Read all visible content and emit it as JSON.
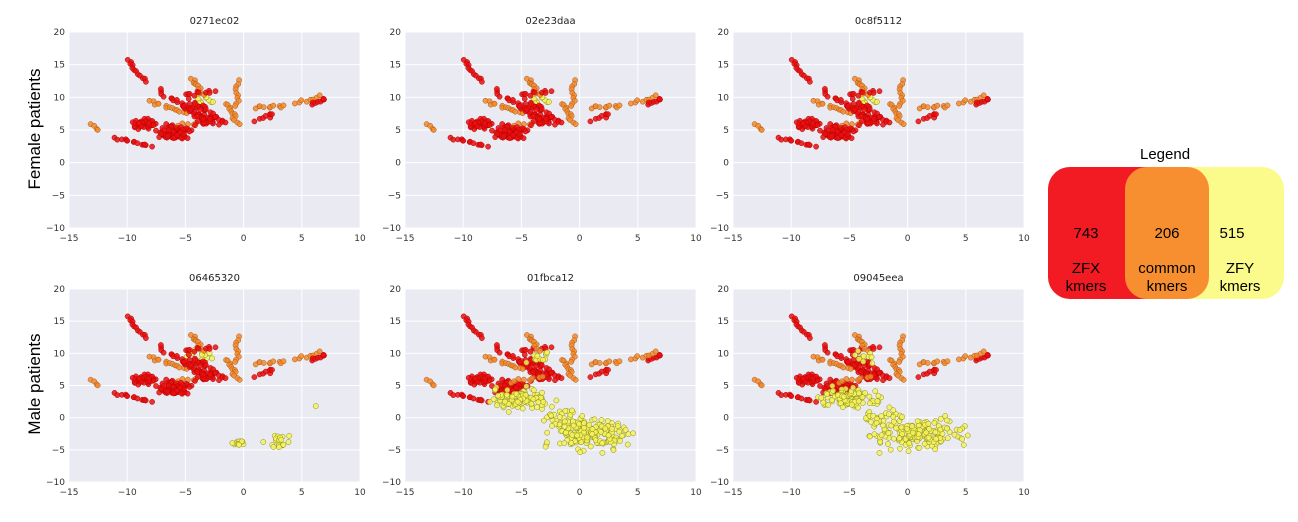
{
  "figure": {
    "row_labels": {
      "female": "Female patients",
      "male": "Male patients"
    }
  },
  "colors": {
    "zfx": "#e81010",
    "common": "#f28a2e",
    "zfy": "#f6f35a",
    "plot_bg": "#eaeaf2",
    "grid": "#ffffff"
  },
  "legend": {
    "title": "Legend",
    "zfx": {
      "count": "743",
      "label_line1": "ZFX",
      "label_line2": "kmers"
    },
    "common": {
      "count": "206",
      "label_line1": "common",
      "label_line2": "kmers"
    },
    "zfy": {
      "count": "515",
      "label_line1": "ZFY",
      "label_line2": "kmers"
    }
  },
  "chart_data": [
    {
      "type": "scatter",
      "title": "0271ec02",
      "group": "female",
      "zfy_spread": 0,
      "xlim": [
        -15,
        10
      ],
      "ylim": [
        -10,
        20
      ],
      "xticks": [
        "−15",
        "−10",
        "−5",
        "0",
        "5",
        "10"
      ],
      "yticks": [
        "−10",
        "−5",
        "0",
        "5",
        "10",
        "15",
        "20"
      ]
    },
    {
      "type": "scatter",
      "title": "02e23daa",
      "group": "female",
      "zfy_spread": 0,
      "xlim": [
        -15,
        10
      ],
      "ylim": [
        -10,
        20
      ],
      "xticks": [
        "−15",
        "−10",
        "−5",
        "0",
        "5",
        "10"
      ],
      "yticks": [
        "−10",
        "−5",
        "0",
        "5",
        "10",
        "15",
        "20"
      ]
    },
    {
      "type": "scatter",
      "title": "0c8f5112",
      "group": "female",
      "zfy_spread": 0,
      "xlim": [
        -15,
        10
      ],
      "ylim": [
        -10,
        20
      ],
      "xticks": [
        "−15",
        "−10",
        "−5",
        "0",
        "5",
        "10"
      ],
      "yticks": [
        "−10",
        "−5",
        "0",
        "5",
        "10",
        "15",
        "20"
      ]
    },
    {
      "type": "scatter",
      "title": "06465320",
      "group": "male",
      "zfy_spread": 1,
      "xlim": [
        -15,
        10
      ],
      "ylim": [
        -10,
        20
      ],
      "xticks": [
        "−15",
        "−10",
        "−5",
        "0",
        "5",
        "10"
      ],
      "yticks": [
        "−10",
        "−5",
        "0",
        "5",
        "10",
        "15",
        "20"
      ]
    },
    {
      "type": "scatter",
      "title": "01fbca12",
      "group": "male",
      "zfy_spread": 2,
      "xlim": [
        -15,
        10
      ],
      "ylim": [
        -10,
        20
      ],
      "xticks": [
        "−15",
        "−10",
        "−5",
        "0",
        "5",
        "10"
      ],
      "yticks": [
        "−10",
        "−5",
        "0",
        "5",
        "10",
        "15",
        "20"
      ]
    },
    {
      "type": "scatter",
      "title": "09045eea",
      "group": "male",
      "zfy_spread": 2,
      "xlim": [
        -15,
        10
      ],
      "ylim": [
        -10,
        20
      ],
      "xticks": [
        "−15",
        "−10",
        "−5",
        "0",
        "5",
        "10"
      ],
      "yticks": [
        "−10",
        "−5",
        "0",
        "5",
        "10",
        "15",
        "20"
      ]
    }
  ]
}
